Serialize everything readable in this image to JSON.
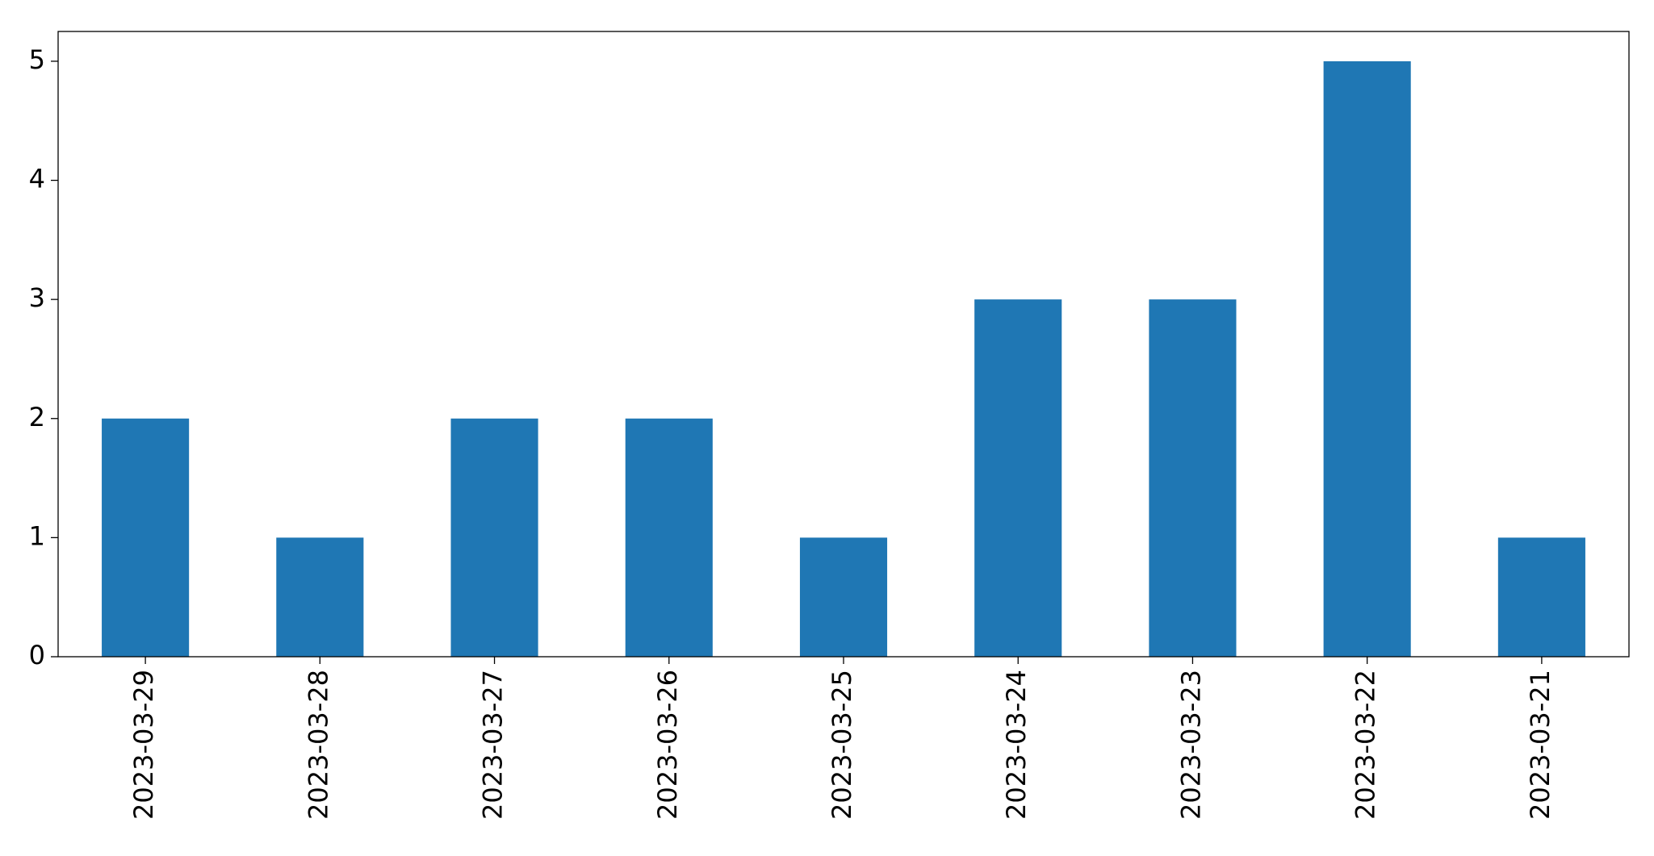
{
  "chart_data": {
    "type": "bar",
    "categories": [
      "2023-03-29",
      "2023-03-28",
      "2023-03-27",
      "2023-03-26",
      "2023-03-25",
      "2023-03-24",
      "2023-03-23",
      "2023-03-22",
      "2023-03-21"
    ],
    "values": [
      2,
      1,
      2,
      2,
      1,
      3,
      3,
      5,
      1
    ],
    "color": "#1f77b4",
    "ylim": [
      0,
      5.25
    ],
    "yticks": [
      0,
      1,
      2,
      3,
      4,
      5
    ],
    "grid": false
  }
}
